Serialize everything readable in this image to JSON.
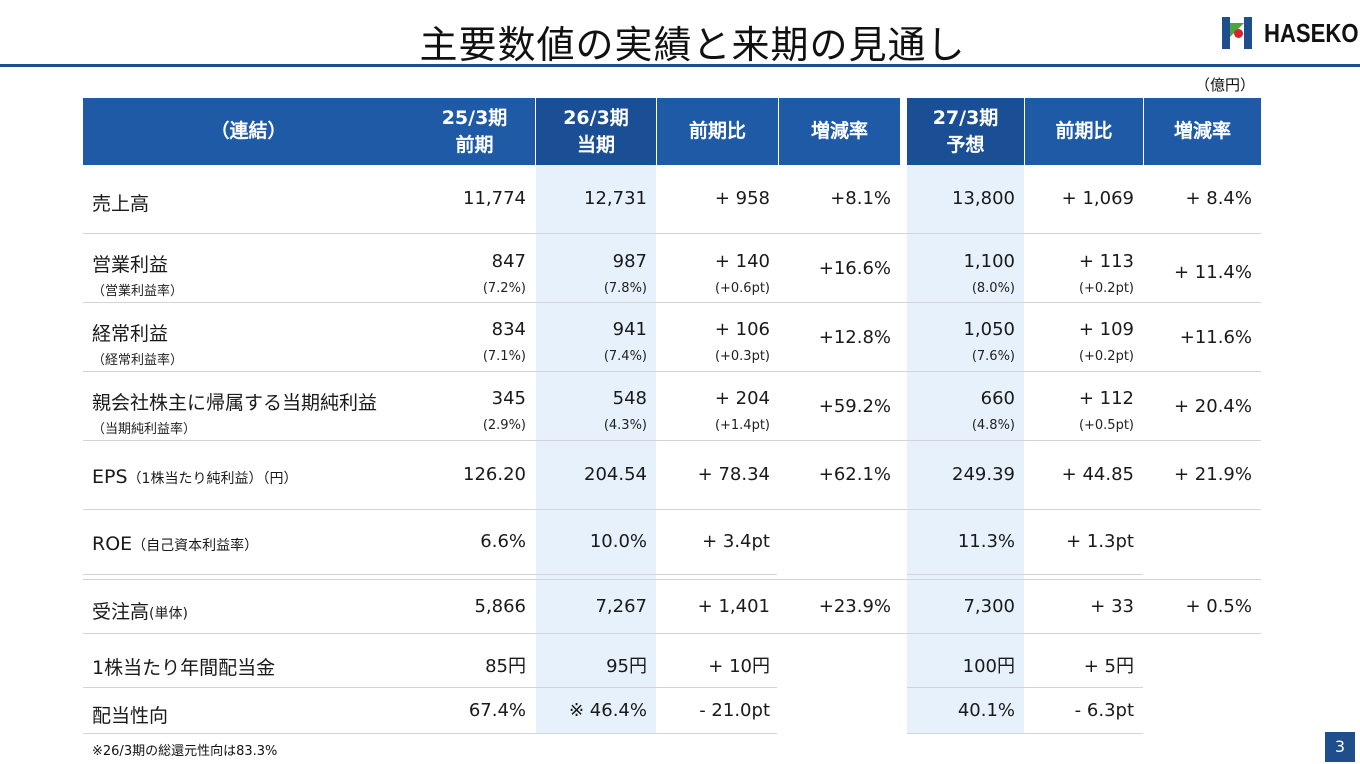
{
  "title": "主要数値の実績と来期の見通し",
  "logo_text": "HASEKO",
  "unit": "（億円）",
  "headers": {
    "label": "（連結）",
    "prev": [
      "25/3期",
      "前期"
    ],
    "cur": [
      "26/3期",
      "当期"
    ],
    "yoy": "前期比",
    "rate": "増減率",
    "fc": [
      "27/3期",
      "予想"
    ],
    "fc_yoy": "前期比",
    "fc_rate": "増減率"
  },
  "rows": {
    "sales": {
      "label": "売上高",
      "prev": "11,774",
      "cur": "12,731",
      "yoy": "+ 958",
      "rate": "+8.1%",
      "fc": "13,800",
      "fc_yoy": "+ 1,069",
      "fc_rate": "+ 8.4%"
    },
    "op": {
      "label": "営業利益",
      "sub_label": "（営業利益率）",
      "prev": "847",
      "prev_sub": "(7.2%)",
      "cur": "987",
      "cur_sub": "(7.8%)",
      "yoy": "+ 140",
      "yoy_sub": "(+0.6pt)",
      "rate": "+16.6%",
      "fc": "1,100",
      "fc_sub": "(8.0%)",
      "fc_yoy": "+ 113",
      "fc_yoy_sub": "(+0.2pt)",
      "fc_rate": "+ 11.4%"
    },
    "ord": {
      "label": "経常利益",
      "sub_label": "（経常利益率）",
      "prev": "834",
      "prev_sub": "(7.1%)",
      "cur": "941",
      "cur_sub": "(7.4%)",
      "yoy": "+ 106",
      "yoy_sub": "(+0.3pt)",
      "rate": "+12.8%",
      "fc": "1,050",
      "fc_sub": "(7.6%)",
      "fc_yoy": "+ 109",
      "fc_yoy_sub": "(+0.2pt)",
      "fc_rate": "+11.6%"
    },
    "net": {
      "label": "親会社株主に帰属する当期純利益",
      "sub_label": "（当期純利益率）",
      "prev": "345",
      "prev_sub": "(2.9%)",
      "cur": "548",
      "cur_sub": "(4.3%)",
      "yoy": "+ 204",
      "yoy_sub": "(+1.4pt)",
      "rate": "+59.2%",
      "fc": "660",
      "fc_sub": "(4.8%)",
      "fc_yoy": "+ 112",
      "fc_yoy_sub": "(+0.5pt)",
      "fc_rate": "+ 20.4%"
    },
    "eps": {
      "label": "EPS",
      "label_small": "（1株当たり純利益）（円）",
      "prev": "126.20",
      "cur": "204.54",
      "yoy": "+ 78.34",
      "rate": "+62.1%",
      "fc": "249.39",
      "fc_yoy": "+ 44.85",
      "fc_rate": "+ 21.9%"
    },
    "roe": {
      "label": "ROE",
      "label_small": "（自己資本利益率）",
      "prev": "6.6%",
      "cur": "10.0%",
      "yoy": "+ 3.4pt",
      "fc": "11.3%",
      "fc_yoy": "+ 1.3pt"
    },
    "orders": {
      "label": "受注高",
      "label_small": "(単体)",
      "prev": "5,866",
      "cur": "7,267",
      "yoy": "+ 1,401",
      "rate": "+23.9%",
      "fc": "7,300",
      "fc_yoy": "+ 33",
      "fc_rate": "+ 0.5%"
    },
    "div": {
      "label": "1株当たり年間配当金",
      "prev": "85円",
      "cur": "95円",
      "yoy": "+ 10円",
      "fc": "100円",
      "fc_yoy": "+ 5円"
    },
    "payout": {
      "label": "配当性向",
      "prev": "67.4%",
      "cur": "※ 46.4%",
      "yoy": "- 21.0pt",
      "fc": "40.1%",
      "fc_yoy": "- 6.3pt"
    }
  },
  "footnote": "※26/3期の総還元性向は83.3%",
  "page_number": "3"
}
